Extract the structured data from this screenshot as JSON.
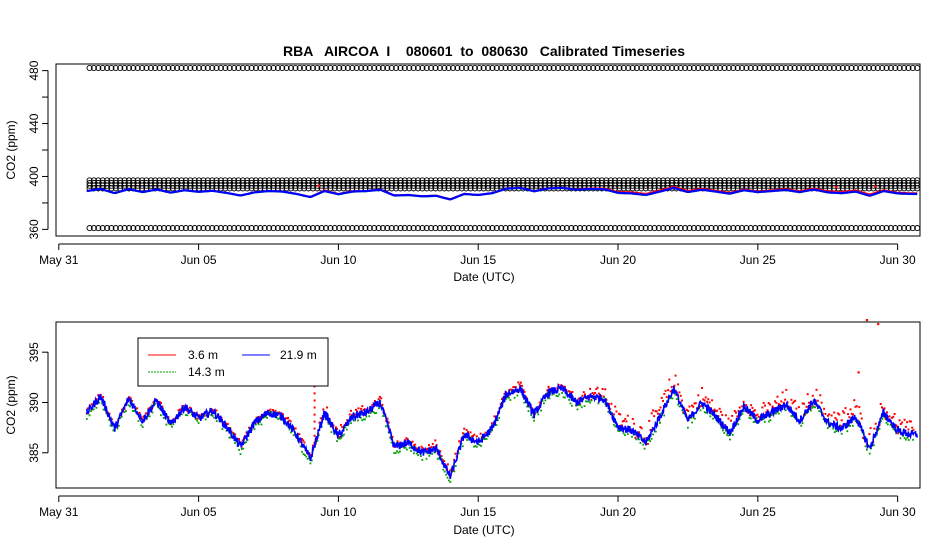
{
  "figure_title": "RBA   AIRCOA  I    080601  to  080630   Calibrated Timeseries",
  "colors": {
    "red": "#ff0000",
    "green": "#00a000",
    "blue": "#0000ff",
    "black": "#000000"
  },
  "chart_data": [
    {
      "type": "scatter",
      "title": "RBA   AIRCOA  I    080601  to  080630   Calibrated Timeseries",
      "xlabel": "Date (UTC)",
      "ylabel": "CO2 (ppm)",
      "x_unit": "days since May 31",
      "xlim": [
        -0.1,
        30.8
      ],
      "ylim": [
        355,
        485
      ],
      "x_ticks": [
        0,
        5,
        10,
        15,
        20,
        25,
        30
      ],
      "x_tick_labels": [
        "May 31",
        "Jun 05",
        "Jun 10",
        "Jun 15",
        "Jun 20",
        "Jun 25",
        "Jun 30"
      ],
      "y_ticks": [
        360,
        380,
        400,
        420,
        440,
        460,
        480
      ],
      "y_tick_labels": [
        "360",
        "",
        "400",
        "",
        "440",
        "",
        "480"
      ],
      "grid": false,
      "reference_levels": {
        "marker": "open-circle",
        "color": "#000000",
        "x_range": [
          1.1,
          30.7
        ],
        "levels_ppm": [
          361,
          391,
          393,
          395,
          397,
          482
        ]
      },
      "series": [
        {
          "name": "3.6 m",
          "color": "#ff0000",
          "baseline_ppm": 389,
          "range_ppm": [
            382,
            393
          ]
        },
        {
          "name": "14.3 m",
          "color": "#00a000",
          "baseline_ppm": 388,
          "range_ppm": [
            382,
            392
          ]
        },
        {
          "name": "21.9 m",
          "color": "#0000ff",
          "baseline_ppm": 388,
          "range_ppm": [
            382,
            392
          ]
        }
      ]
    },
    {
      "type": "scatter",
      "xlabel": "Date (UTC)",
      "ylabel": "CO2 (ppm)",
      "x_unit": "days since May 31",
      "xlim": [
        -0.1,
        30.8
      ],
      "ylim": [
        381.5,
        398
      ],
      "x_ticks": [
        0,
        5,
        10,
        15,
        20,
        25,
        30
      ],
      "x_tick_labels": [
        "May 31",
        "Jun 05",
        "Jun 10",
        "Jun 15",
        "Jun 20",
        "Jun 25",
        "Jun 30"
      ],
      "y_ticks": [
        385,
        390,
        395
      ],
      "y_tick_labels": [
        "385",
        "390",
        "395"
      ],
      "grid": false,
      "legend": {
        "placement": "top-left",
        "entries": [
          {
            "label": "3.6 m",
            "color": "#ff0000"
          },
          {
            "label": "21.9 m",
            "color": "#0000ff"
          },
          {
            "label": "14.3 m",
            "color": "#00a000"
          }
        ]
      },
      "series_keypoints": {
        "x": [
          1.0,
          1.5,
          2.0,
          2.5,
          3.0,
          3.5,
          4.0,
          4.5,
          5.0,
          5.5,
          6.0,
          6.5,
          7.0,
          7.5,
          8.0,
          8.5,
          9.0,
          9.5,
          10.0,
          10.5,
          11.0,
          11.5,
          12.0,
          12.5,
          13.0,
          13.5,
          14.0,
          14.5,
          15.0,
          15.5,
          16.0,
          16.5,
          17.0,
          17.5,
          18.0,
          18.5,
          19.0,
          19.5,
          20.0,
          20.5,
          21.0,
          21.5,
          22.0,
          22.5,
          23.0,
          23.5,
          24.0,
          24.5,
          25.0,
          25.5,
          26.0,
          26.5,
          27.0,
          27.5,
          28.0,
          28.5,
          29.0,
          29.5,
          30.0,
          30.5
        ],
        "blue_21_9m": [
          389.0,
          390.6,
          387.4,
          390.4,
          388.2,
          390.2,
          387.8,
          389.6,
          388.4,
          389.2,
          387.6,
          385.6,
          388.0,
          389.0,
          388.6,
          386.8,
          384.4,
          389.0,
          386.6,
          388.6,
          389.0,
          390.0,
          385.6,
          386.0,
          385.0,
          385.4,
          382.6,
          386.8,
          386.0,
          387.4,
          390.8,
          391.4,
          388.8,
          391.0,
          391.4,
          390.0,
          390.6,
          390.4,
          387.6,
          387.2,
          386.0,
          388.6,
          391.4,
          388.2,
          390.0,
          388.6,
          387.0,
          389.6,
          388.2,
          389.0,
          389.8,
          388.2,
          390.2,
          388.0,
          387.4,
          388.6,
          385.4,
          389.0,
          387.2,
          386.8
        ],
        "red_3_6m_offset": [
          0.0,
          0.3,
          0.2,
          0.3,
          0.2,
          0.3,
          0.2,
          0.3,
          0.2,
          0.2,
          0.2,
          0.4,
          0.2,
          0.2,
          0.3,
          0.5,
          0.5,
          1.0,
          0.6,
          0.7,
          0.4,
          0.6,
          0.5,
          0.5,
          0.4,
          0.6,
          0.6,
          0.5,
          0.4,
          0.5,
          0.4,
          0.5,
          0.4,
          0.5,
          0.5,
          0.6,
          0.8,
          1.0,
          1.2,
          1.4,
          1.4,
          1.5,
          1.4,
          1.4,
          1.2,
          1.2,
          1.2,
          1.0,
          1.0,
          1.1,
          1.2,
          1.2,
          1.2,
          1.4,
          1.6,
          1.5,
          1.6,
          1.2,
          1.0,
          1.0
        ],
        "outliers_red": [
          [
            9.2,
            394.5
          ],
          [
            9.3,
            393.8
          ],
          [
            28.9,
            398.2
          ],
          [
            29.3,
            397.8
          ],
          [
            28.6,
            393.0
          ]
        ]
      }
    }
  ]
}
